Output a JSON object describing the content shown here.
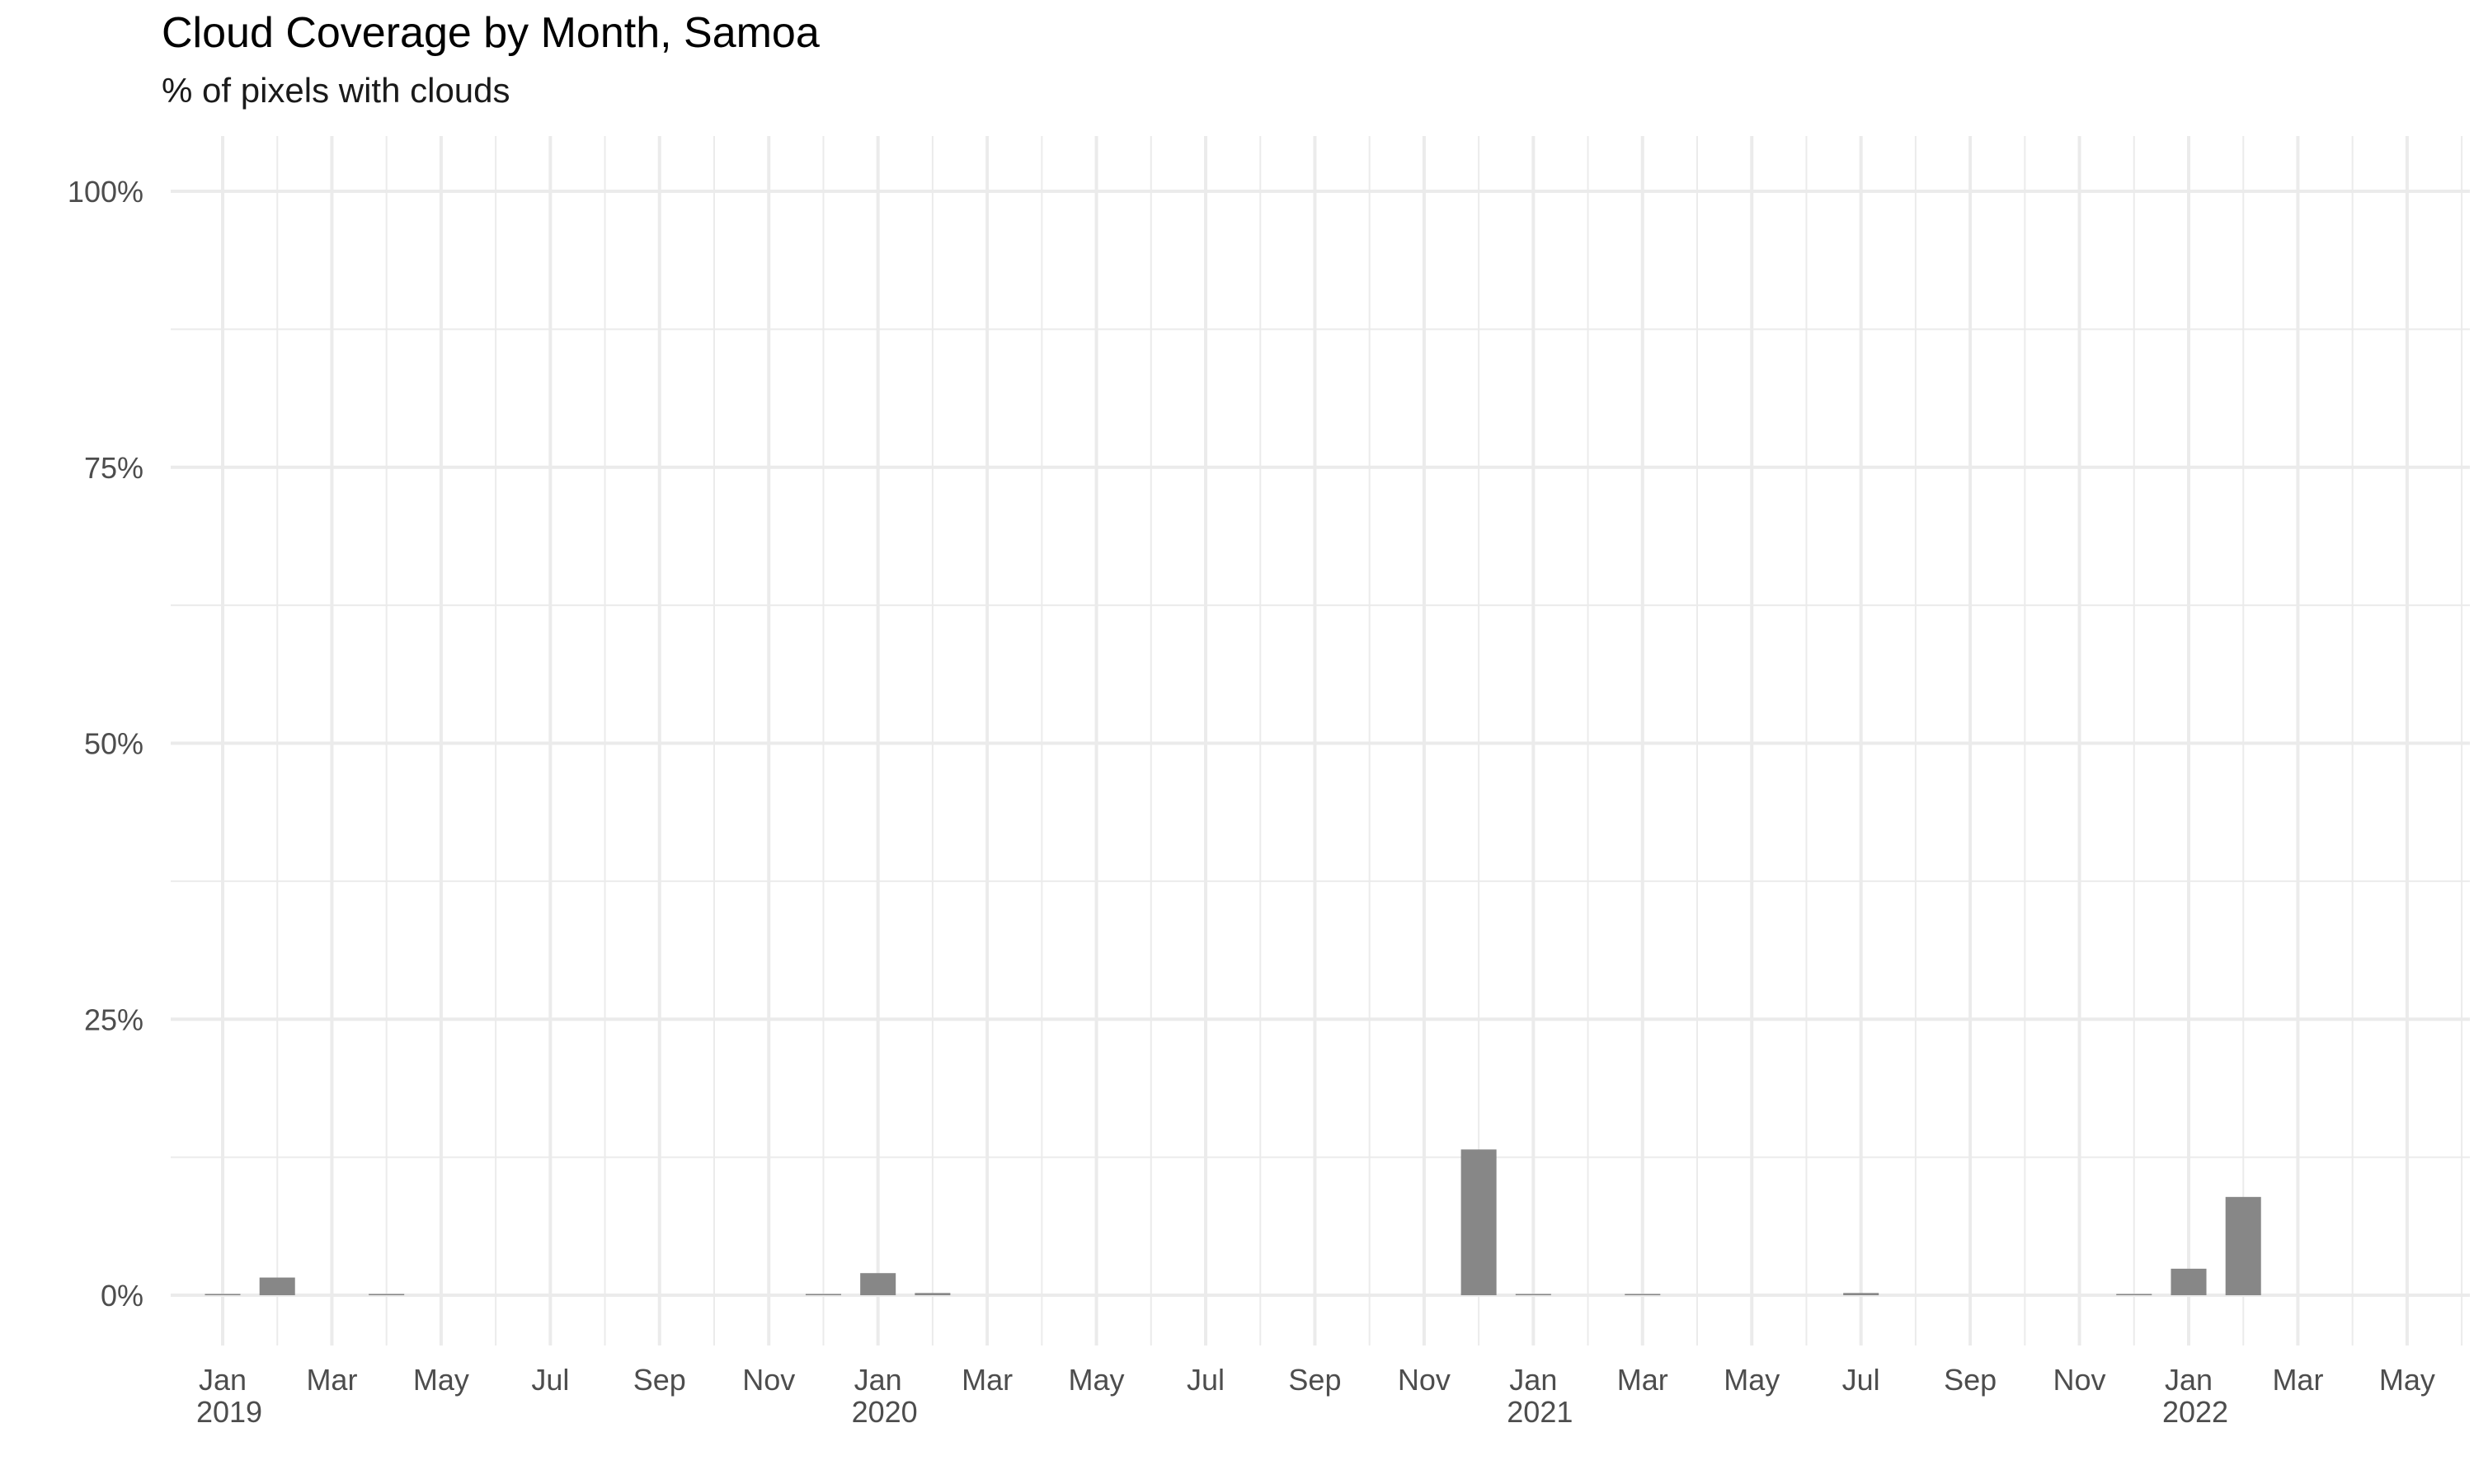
{
  "chart_data": {
    "type": "bar",
    "title": "Cloud Coverage by Month, Samoa",
    "subtitle": "% of pixels with clouds",
    "xlabel": "",
    "ylabel": "",
    "x_range": [
      "2018-12",
      "2022-06"
    ],
    "ylim": [
      0,
      100
    ],
    "y_ticks": [
      {
        "value": 0,
        "label": "0%"
      },
      {
        "value": 25,
        "label": "25%"
      },
      {
        "value": 50,
        "label": "50%"
      },
      {
        "value": 75,
        "label": "75%"
      },
      {
        "value": 100,
        "label": "100%"
      }
    ],
    "x_ticks": [
      {
        "date": "2019-01",
        "label": "Jan",
        "year": "2019"
      },
      {
        "date": "2019-03",
        "label": "Mar"
      },
      {
        "date": "2019-05",
        "label": "May"
      },
      {
        "date": "2019-07",
        "label": "Jul"
      },
      {
        "date": "2019-09",
        "label": "Sep"
      },
      {
        "date": "2019-11",
        "label": "Nov"
      },
      {
        "date": "2020-01",
        "label": "Jan",
        "year": "2020"
      },
      {
        "date": "2020-03",
        "label": "Mar"
      },
      {
        "date": "2020-05",
        "label": "May"
      },
      {
        "date": "2020-07",
        "label": "Jul"
      },
      {
        "date": "2020-09",
        "label": "Sep"
      },
      {
        "date": "2020-11",
        "label": "Nov"
      },
      {
        "date": "2021-01",
        "label": "Jan",
        "year": "2021"
      },
      {
        "date": "2021-03",
        "label": "Mar"
      },
      {
        "date": "2021-05",
        "label": "May"
      },
      {
        "date": "2021-07",
        "label": "Jul"
      },
      {
        "date": "2021-09",
        "label": "Sep"
      },
      {
        "date": "2021-11",
        "label": "Nov"
      },
      {
        "date": "2022-01",
        "label": "Jan",
        "year": "2022"
      },
      {
        "date": "2022-03",
        "label": "Mar"
      },
      {
        "date": "2022-05",
        "label": "May"
      }
    ],
    "bars": [
      {
        "date": "2019-01",
        "value": 0.1
      },
      {
        "date": "2019-02",
        "value": 1.6
      },
      {
        "date": "2019-04",
        "value": 0.1
      },
      {
        "date": "2019-12",
        "value": 0.1
      },
      {
        "date": "2020-01",
        "value": 2.0
      },
      {
        "date": "2020-02",
        "value": 0.2
      },
      {
        "date": "2020-12",
        "value": 13.2
      },
      {
        "date": "2021-01",
        "value": 0.1
      },
      {
        "date": "2021-03",
        "value": 0.1
      },
      {
        "date": "2021-07",
        "value": 0.2
      },
      {
        "date": "2021-12",
        "value": 0.1
      },
      {
        "date": "2022-01",
        "value": 2.4
      },
      {
        "date": "2022-02",
        "value": 8.9
      }
    ],
    "bar_color": "#878787",
    "grid": true,
    "grid_color": "#ebebeb",
    "legend": "none"
  }
}
